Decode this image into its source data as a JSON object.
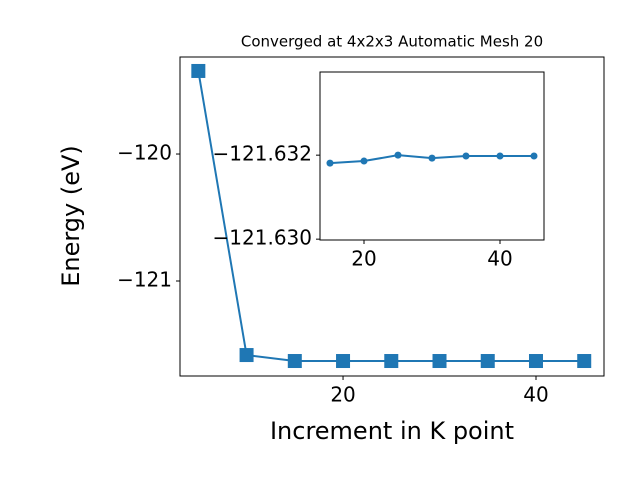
{
  "chart_data": [
    {
      "type": "line",
      "title": "Converged at 4x2x3 Automatic Mesh 20",
      "x_label": "Increment in K point",
      "y_label": "Energy (eV)",
      "x": [
        5,
        10,
        15,
        20,
        25,
        30,
        35,
        40,
        45
      ],
      "series": [
        {
          "color": "#1f77b4",
          "marker": "square",
          "values": [
            -119.346,
            -121.583,
            -121.63,
            -121.63,
            -121.63,
            -121.63,
            -121.63,
            -121.63,
            -121.63
          ]
        }
      ],
      "xlim": [
        3.1,
        47.05
      ],
      "ylim": [
        -121.748,
        -119.236
      ],
      "xticks": [
        20,
        40
      ],
      "yticks": [
        {
          "value": -121,
          "label": "−121"
        },
        {
          "value": -120,
          "label": "−120"
        }
      ]
    },
    {
      "type": "line",
      "x": [
        15,
        20,
        25,
        30,
        35,
        40,
        45
      ],
      "series": [
        {
          "color": "#1f77b4",
          "marker": "circle",
          "values": [
            -121.63181,
            -121.63186,
            -121.632,
            -121.63193,
            -121.63198,
            -121.63198,
            -121.63198
          ]
        }
      ],
      "xlim": [
        13.53,
        46.47
      ],
      "ylim": [
        -121.62998,
        -121.63398
      ],
      "xticks": [
        20,
        40
      ],
      "yticks": [
        {
          "value": -121.632,
          "label": "−121.632"
        },
        {
          "value": -121.63,
          "label": "−121.630"
        }
      ]
    }
  ]
}
